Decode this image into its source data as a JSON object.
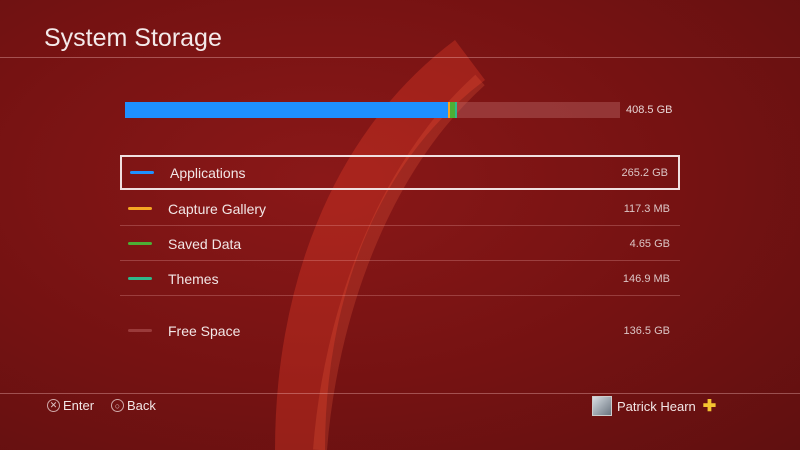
{
  "header": {
    "title": "System Storage"
  },
  "storage": {
    "total_label": "408.5 GB",
    "total_gb": 408.5,
    "categories": [
      {
        "label": "Applications",
        "value": "265.2 GB",
        "gb": 265.2,
        "color": "#1e90ff"
      },
      {
        "label": "Capture Gallery",
        "value": "117.3 MB",
        "gb": 0.117,
        "color": "#f5a623"
      },
      {
        "label": "Saved Data",
        "value": "4.65 GB",
        "gb": 4.65,
        "color": "#4caf35"
      },
      {
        "label": "Themes",
        "value": "146.9 MB",
        "gb": 0.147,
        "color": "#2fb88a"
      },
      {
        "label": "Free Space",
        "value": "136.5 GB",
        "gb": 136.5,
        "color": "#9a3a3a"
      }
    ]
  },
  "footer": {
    "enter_label": "Enter",
    "back_label": "Back",
    "cross_icon": "✕",
    "circle_icon": "○",
    "user_name": "Patrick Hearn",
    "plus_icon": "✚"
  },
  "colors": {
    "background": "#751212",
    "selection": "#f0e0e0"
  }
}
